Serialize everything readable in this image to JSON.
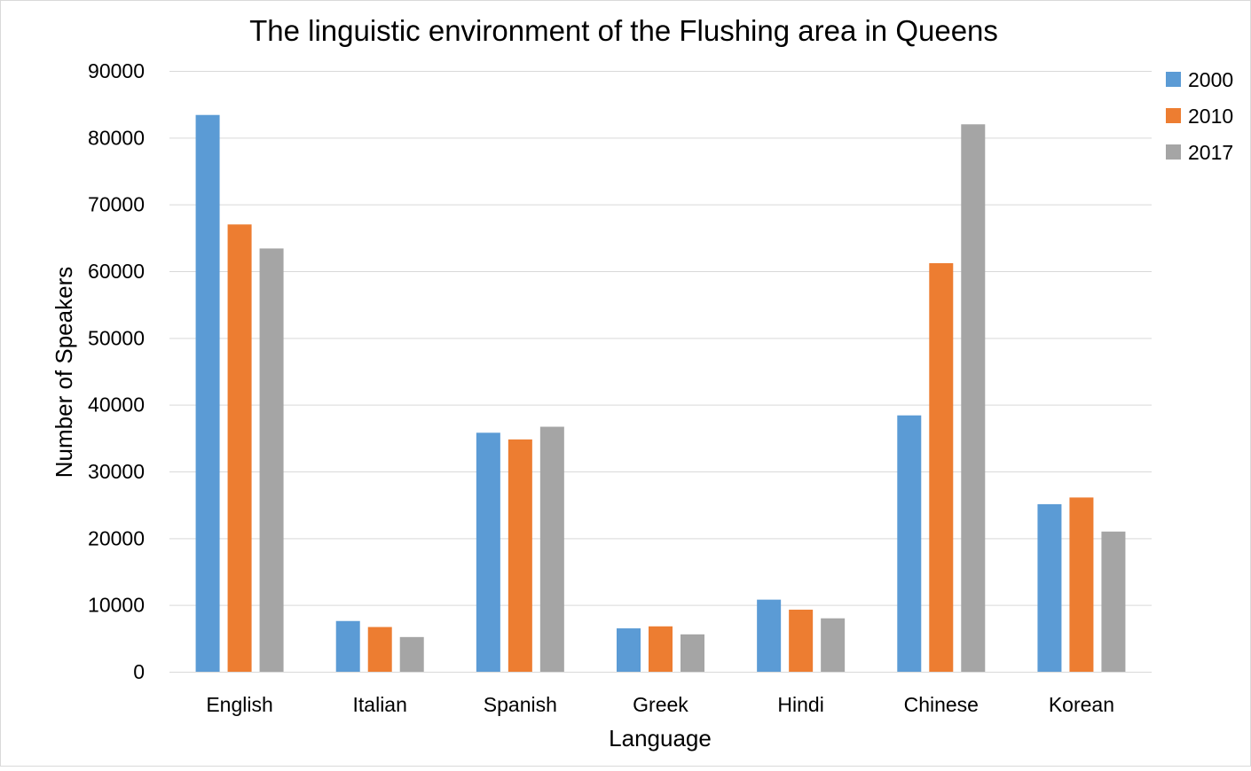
{
  "chart_data": {
    "type": "bar",
    "title": "The linguistic environment of the Flushing area in Queens",
    "xlabel": "Language",
    "ylabel": "Number of Speakers",
    "categories": [
      "English",
      "Italian",
      "Spanish",
      "Greek",
      "Hindi",
      "Chinese",
      "Korean"
    ],
    "series": [
      {
        "name": "2000",
        "color": "#5b9bd5",
        "values": [
          83400,
          7600,
          35800,
          6500,
          10800,
          38400,
          25100
        ]
      },
      {
        "name": "2010",
        "color": "#ed7d31",
        "values": [
          67000,
          6700,
          34800,
          6800,
          9300,
          61200,
          26100
        ]
      },
      {
        "name": "2017",
        "color": "#a5a5a5",
        "values": [
          63400,
          5200,
          36700,
          5600,
          8000,
          82000,
          21000
        ]
      }
    ],
    "ylim": [
      0,
      90000
    ],
    "yticks": [
      "0",
      "10000",
      "20000",
      "30000",
      "40000",
      "50000",
      "60000",
      "70000",
      "80000",
      "90000"
    ],
    "grid": true,
    "legend_position": "top-right"
  }
}
